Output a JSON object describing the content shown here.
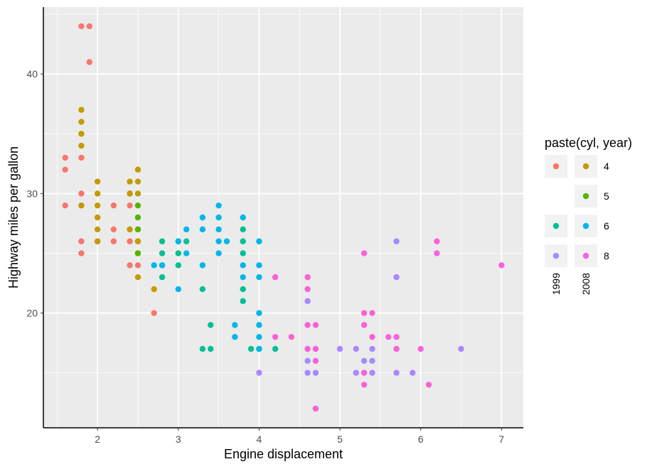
{
  "chart_data": {
    "type": "scatter",
    "xlabel": "Engine displacement",
    "ylabel": "Highway miles per gallon",
    "xlim": [
      1.33,
      7.27
    ],
    "ylim": [
      10.4,
      45.6
    ],
    "x_ticks": [
      2,
      3,
      4,
      5,
      6,
      7
    ],
    "y_ticks": [
      20,
      30,
      40
    ],
    "grid": true,
    "legend": {
      "title": "paste(cyl, year)",
      "placement": "right",
      "row_labels": [
        "4",
        "5",
        "6",
        "8"
      ],
      "column_labels": [
        "1999",
        "2008"
      ],
      "entries": [
        {
          "cyl": "4",
          "year": "1999",
          "color": "#F8766D"
        },
        {
          "cyl": "4",
          "year": "2008",
          "color": "#C49A00"
        },
        {
          "cyl": "5",
          "year": "2008",
          "color": "#53B400"
        },
        {
          "cyl": "6",
          "year": "1999",
          "color": "#00C094"
        },
        {
          "cyl": "6",
          "year": "2008",
          "color": "#00B6EB"
        },
        {
          "cyl": "8",
          "year": "1999",
          "color": "#A58AFF"
        },
        {
          "cyl": "8",
          "year": "2008",
          "color": "#FB61D7"
        }
      ]
    },
    "series": [
      {
        "cyl": "4",
        "year": "1999",
        "color": "#F8766D",
        "points": [
          [
            1.6,
            33
          ],
          [
            1.6,
            32
          ],
          [
            1.6,
            29
          ],
          [
            1.8,
            44
          ],
          [
            1.9,
            44
          ],
          [
            1.9,
            41
          ],
          [
            1.8,
            33
          ],
          [
            1.8,
            30
          ],
          [
            1.8,
            29
          ],
          [
            1.8,
            26
          ],
          [
            1.8,
            25
          ],
          [
            2.0,
            26
          ],
          [
            2.2,
            29
          ],
          [
            2.2,
            27
          ],
          [
            2.2,
            26
          ],
          [
            2.4,
            30
          ],
          [
            2.4,
            29
          ],
          [
            2.4,
            27
          ],
          [
            2.4,
            26
          ],
          [
            2.4,
            24
          ],
          [
            2.5,
            24
          ],
          [
            2.5,
            26
          ],
          [
            2.7,
            20
          ]
        ]
      },
      {
        "cyl": "4",
        "year": "2008",
        "color": "#C49A00",
        "points": [
          [
            1.8,
            37
          ],
          [
            1.8,
            36
          ],
          [
            1.8,
            35
          ],
          [
            1.8,
            34
          ],
          [
            1.8,
            29
          ],
          [
            2.0,
            31
          ],
          [
            2.0,
            30
          ],
          [
            2.0,
            29
          ],
          [
            2.0,
            28
          ],
          [
            2.0,
            27
          ],
          [
            2.0,
            26
          ],
          [
            2.4,
            31
          ],
          [
            2.4,
            30
          ],
          [
            2.4,
            27
          ],
          [
            2.5,
            32
          ],
          [
            2.5,
            31
          ],
          [
            2.5,
            30
          ],
          [
            2.5,
            27
          ],
          [
            2.5,
            26
          ],
          [
            2.5,
            25
          ],
          [
            2.5,
            23
          ],
          [
            2.7,
            22
          ]
        ]
      },
      {
        "cyl": "5",
        "year": "2008",
        "color": "#53B400",
        "points": [
          [
            2.5,
            29
          ],
          [
            2.5,
            28
          ],
          [
            2.5,
            27
          ],
          [
            2.5,
            25
          ]
        ]
      },
      {
        "cyl": "6",
        "year": "1999",
        "color": "#00C094",
        "points": [
          [
            2.8,
            26
          ],
          [
            2.8,
            25
          ],
          [
            2.8,
            24
          ],
          [
            2.8,
            23
          ],
          [
            3.0,
            26
          ],
          [
            3.0,
            25
          ],
          [
            3.0,
            24
          ],
          [
            3.1,
            26
          ],
          [
            3.3,
            22
          ],
          [
            3.3,
            17
          ],
          [
            3.4,
            19
          ],
          [
            3.4,
            17
          ],
          [
            3.8,
            27
          ],
          [
            3.8,
            26
          ],
          [
            3.8,
            25
          ],
          [
            3.8,
            22
          ],
          [
            3.8,
            21
          ],
          [
            3.9,
            17
          ],
          [
            4.0,
            17
          ],
          [
            4.2,
            17
          ]
        ]
      },
      {
        "cyl": "6",
        "year": "2008",
        "color": "#00B6EB",
        "points": [
          [
            2.7,
            24
          ],
          [
            2.8,
            24
          ],
          [
            3.0,
            22
          ],
          [
            3.0,
            26
          ],
          [
            3.1,
            27
          ],
          [
            3.1,
            25
          ],
          [
            3.3,
            28
          ],
          [
            3.3,
            27
          ],
          [
            3.3,
            24
          ],
          [
            3.5,
            29
          ],
          [
            3.5,
            28
          ],
          [
            3.5,
            27
          ],
          [
            3.5,
            26
          ],
          [
            3.5,
            25
          ],
          [
            3.6,
            26
          ],
          [
            3.7,
            19
          ],
          [
            3.7,
            18
          ],
          [
            3.8,
            28
          ],
          [
            3.8,
            24
          ],
          [
            3.8,
            23
          ],
          [
            4.0,
            26
          ],
          [
            4.0,
            24
          ],
          [
            4.0,
            23
          ],
          [
            4.0,
            20
          ],
          [
            4.0,
            19
          ],
          [
            4.0,
            18
          ],
          [
            4.0,
            17
          ]
        ]
      },
      {
        "cyl": "8",
        "year": "1999",
        "color": "#A58AFF",
        "points": [
          [
            4.0,
            15
          ],
          [
            4.6,
            21
          ],
          [
            4.6,
            17
          ],
          [
            4.6,
            16
          ],
          [
            4.6,
            15
          ],
          [
            4.7,
            15
          ],
          [
            4.7,
            17
          ],
          [
            4.7,
            12
          ],
          [
            5.0,
            17
          ],
          [
            5.2,
            17
          ],
          [
            5.2,
            15
          ],
          [
            5.3,
            16
          ],
          [
            5.4,
            17
          ],
          [
            5.4,
            16
          ],
          [
            5.4,
            15
          ],
          [
            5.7,
            26
          ],
          [
            5.7,
            23
          ],
          [
            5.7,
            17
          ],
          [
            5.7,
            15
          ],
          [
            5.9,
            15
          ],
          [
            6.5,
            17
          ]
        ]
      },
      {
        "cyl": "8",
        "year": "2008",
        "color": "#FB61D7",
        "points": [
          [
            4.2,
            23
          ],
          [
            4.2,
            18
          ],
          [
            4.4,
            18
          ],
          [
            4.6,
            23
          ],
          [
            4.6,
            22
          ],
          [
            4.6,
            19
          ],
          [
            4.6,
            17
          ],
          [
            4.7,
            19
          ],
          [
            4.7,
            17
          ],
          [
            4.7,
            16
          ],
          [
            4.7,
            12
          ],
          [
            5.3,
            25
          ],
          [
            5.3,
            20
          ],
          [
            5.3,
            19
          ],
          [
            5.3,
            15
          ],
          [
            5.3,
            14
          ],
          [
            5.4,
            20
          ],
          [
            5.4,
            18
          ],
          [
            5.6,
            18
          ],
          [
            5.7,
            18
          ],
          [
            5.7,
            17
          ],
          [
            6.0,
            17
          ],
          [
            6.1,
            14
          ],
          [
            6.2,
            26
          ],
          [
            6.2,
            25
          ],
          [
            7.0,
            24
          ]
        ]
      }
    ]
  }
}
